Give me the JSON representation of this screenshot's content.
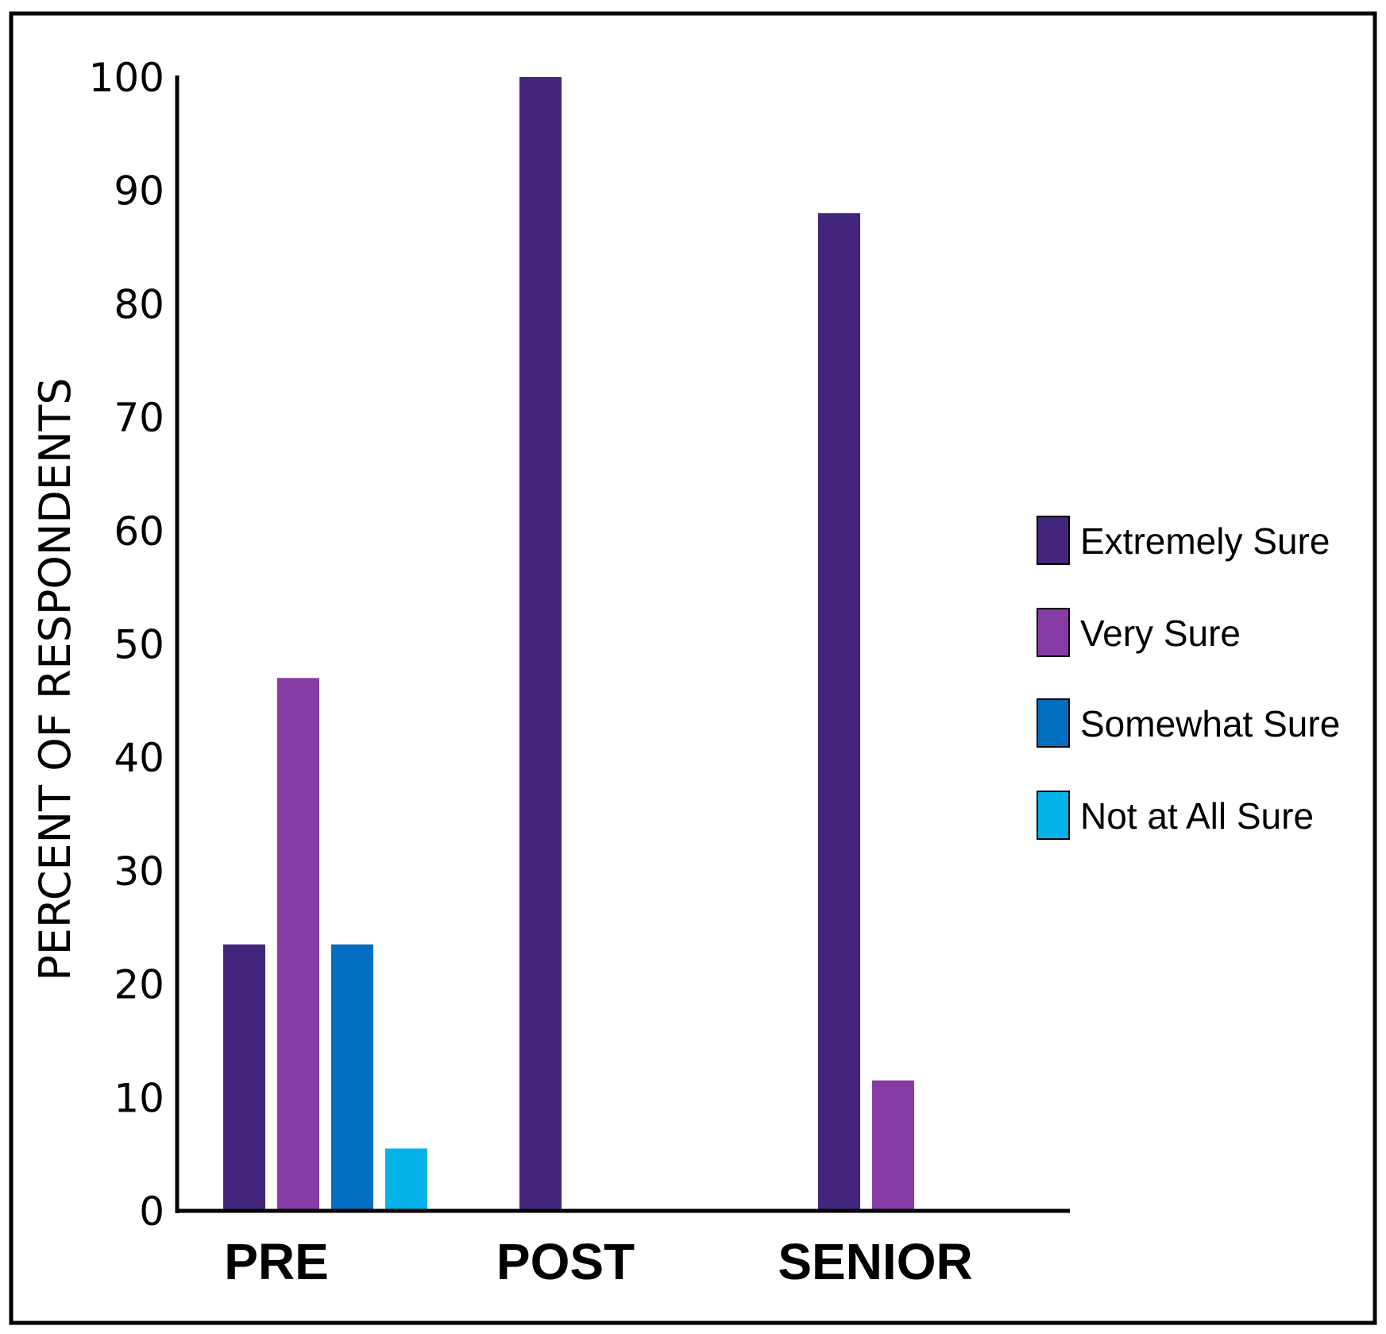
{
  "chart_data": {
    "type": "bar",
    "title": "",
    "xlabel": "",
    "ylabel": "PERCENT OF RESPONDENTS",
    "ylim": [
      0,
      100
    ],
    "yticks": [
      0,
      10,
      20,
      30,
      40,
      50,
      60,
      70,
      80,
      90,
      100
    ],
    "grid": false,
    "legend_position": "right",
    "categories": [
      "PRE",
      "POST",
      "SENIOR"
    ],
    "series": [
      {
        "name": "Extremely Sure",
        "color": "#44257c",
        "values": [
          23.5,
          100,
          88
        ]
      },
      {
        "name": "Very Sure",
        "color": "#873ba4",
        "values": [
          47,
          null,
          11.5
        ]
      },
      {
        "name": "Somewhat Sure",
        "color": "#026ec0",
        "values": [
          23.5,
          null,
          null
        ]
      },
      {
        "name": "Not at All Sure",
        "color": "#04b3e9",
        "values": [
          5.5,
          null,
          null
        ]
      }
    ]
  }
}
